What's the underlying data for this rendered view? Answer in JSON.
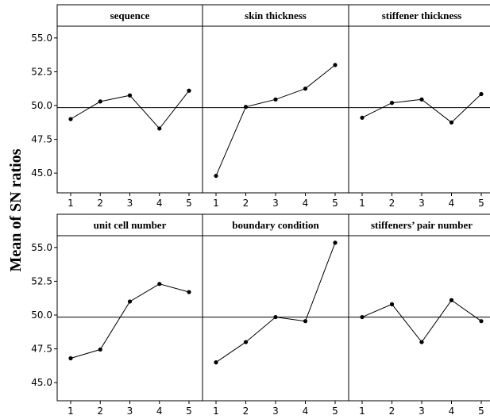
{
  "chart_data": {
    "type": "line",
    "ylabel": "Mean of SN ratios",
    "ylim": [
      44.6,
      55.9
    ],
    "yticks": [
      45.0,
      47.5,
      50.0,
      52.5,
      55.0
    ],
    "ytick_labels": [
      "45.0",
      "47.5",
      "50.0",
      "52.5",
      "55.0"
    ],
    "xticks": [
      1,
      2,
      3,
      4,
      5
    ],
    "xtick_labels": [
      "1",
      "2",
      "3",
      "4",
      "5"
    ],
    "reference_line": 49.85,
    "grid": false,
    "panels": [
      {
        "title": "sequence",
        "x": [
          1,
          2,
          3,
          4,
          5
        ],
        "values": [
          49.0,
          50.3,
          50.75,
          48.3,
          51.1
        ]
      },
      {
        "title": "skin thickness",
        "x": [
          1,
          2,
          3,
          4,
          5
        ],
        "values": [
          44.8,
          49.9,
          50.45,
          51.25,
          53.0
        ]
      },
      {
        "title": "stiffener thickness",
        "x": [
          1,
          2,
          3,
          4,
          5
        ],
        "values": [
          49.1,
          50.2,
          50.45,
          48.75,
          50.85
        ]
      },
      {
        "title": "unit cell number",
        "x": [
          1,
          2,
          3,
          4,
          5
        ],
        "values": [
          46.8,
          47.45,
          51.0,
          52.3,
          51.7
        ]
      },
      {
        "title": "boundary condition",
        "x": [
          1,
          2,
          3,
          4,
          5
        ],
        "values": [
          46.5,
          48.0,
          49.85,
          49.55,
          55.35
        ]
      },
      {
        "title": "stiffeners’ pair number",
        "x": [
          1,
          2,
          3,
          4,
          5
        ],
        "values": [
          49.85,
          50.8,
          48.0,
          51.1,
          49.55
        ]
      }
    ]
  }
}
